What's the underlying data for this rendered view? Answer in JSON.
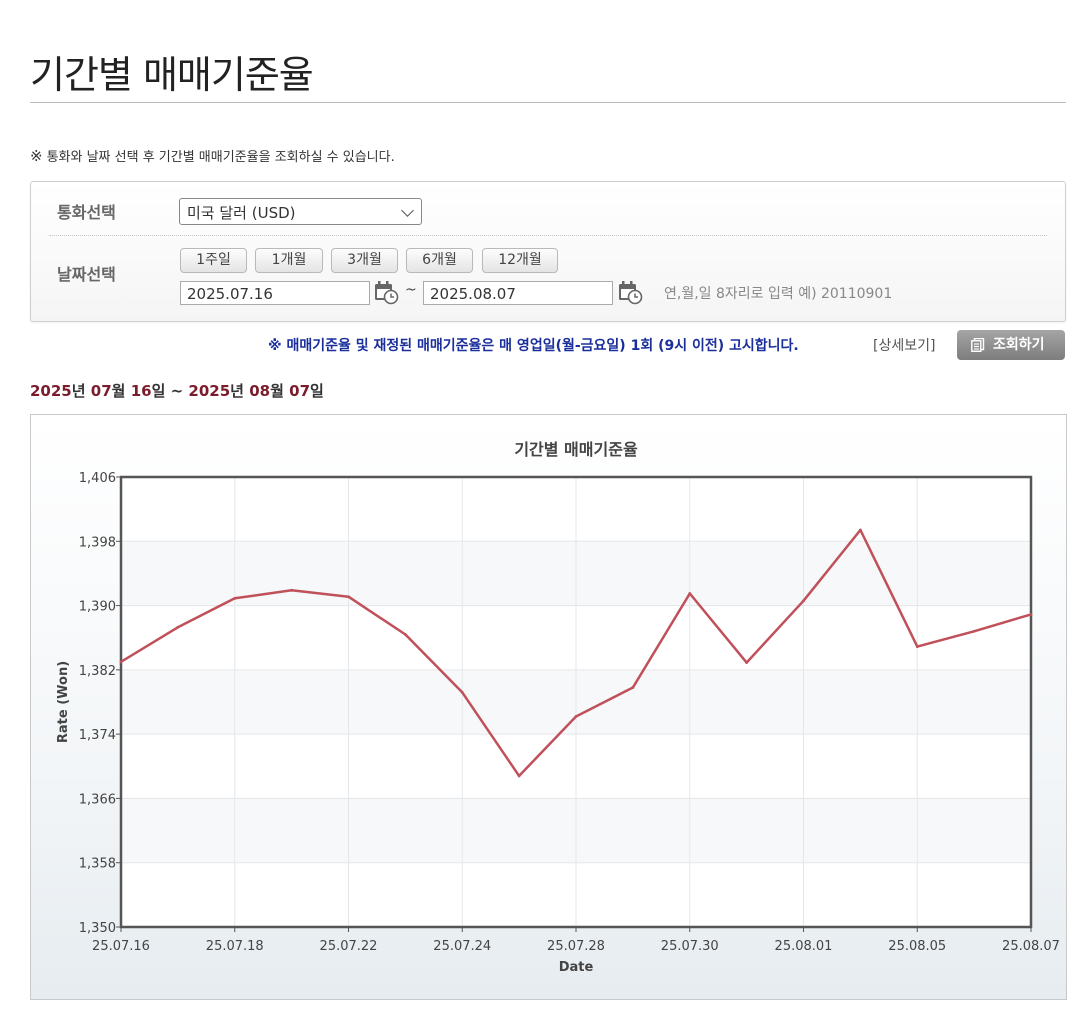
{
  "page": {
    "title": "기간별 매매기준율",
    "notice_mark": "※",
    "notice": "통화와 날짜 선택 후 기간별 매매기준율을 조회하실 수 있습니다."
  },
  "form": {
    "currency_label": "통화선택",
    "currency_value": "미국 달러 (USD)",
    "date_label": "날짜선택",
    "period_buttons": [
      "1주일",
      "1개월",
      "3개월",
      "6개월",
      "12개월"
    ],
    "start_date": "2025.07.16",
    "end_date": "2025.08.07",
    "tilde": "~",
    "date_hint": "연,월,일 8자리로 입력 예) 20110901"
  },
  "info": {
    "notice": "※ 매매기준율 및 재정된 매매기준율은 매 영업일(월-금요일) 1회 (9시 이전) 고시합니다.",
    "detail_link": "[상세보기]",
    "search_button": "조회하기"
  },
  "range": {
    "y1": "2025",
    "w1": "년",
    "m1": "07",
    "w2": "월",
    "d1": "16",
    "w3": "일",
    "sep": " ~ ",
    "y2": "2025",
    "w4": "년",
    "m2": "08",
    "w5": "월",
    "d2": "07",
    "w6": "일"
  },
  "colors": {
    "line": "#c0505a",
    "range_highlight": "#7b1c2c",
    "info_text": "#1a2f9c"
  },
  "chart_data": {
    "type": "line",
    "title": "기간별 매매기준율",
    "xlabel": "Date",
    "ylabel": "Rate (Won)",
    "ylim": [
      1350,
      1406
    ],
    "yticks": [
      1350,
      1358,
      1366,
      1374,
      1382,
      1390,
      1398,
      1406
    ],
    "ytick_labels": [
      "1,350",
      "1,358",
      "1,366",
      "1,374",
      "1,382",
      "1,390",
      "1,398",
      "1,406"
    ],
    "xtick_labels": [
      "25.07.16",
      "25.07.18",
      "25.07.22",
      "25.07.24",
      "25.07.28",
      "25.07.30",
      "25.08.01",
      "25.08.05",
      "25.08.07"
    ],
    "grid": true,
    "series": [
      {
        "x": [
          "25.07.16",
          "25.07.17",
          "25.07.18",
          "25.07.21",
          "25.07.22",
          "25.07.23",
          "25.07.24",
          "25.07.25",
          "25.07.28",
          "25.07.29",
          "25.07.30",
          "25.07.31",
          "25.08.01",
          "25.08.04",
          "25.08.05",
          "25.08.06",
          "25.08.07"
        ],
        "values": [
          1383.0,
          1387.3,
          1390.9,
          1391.9,
          1391.1,
          1386.4,
          1379.2,
          1368.8,
          1376.2,
          1379.8,
          1391.5,
          1382.9,
          1390.6,
          1399.4,
          1384.9,
          1386.8,
          1388.9
        ]
      }
    ]
  }
}
